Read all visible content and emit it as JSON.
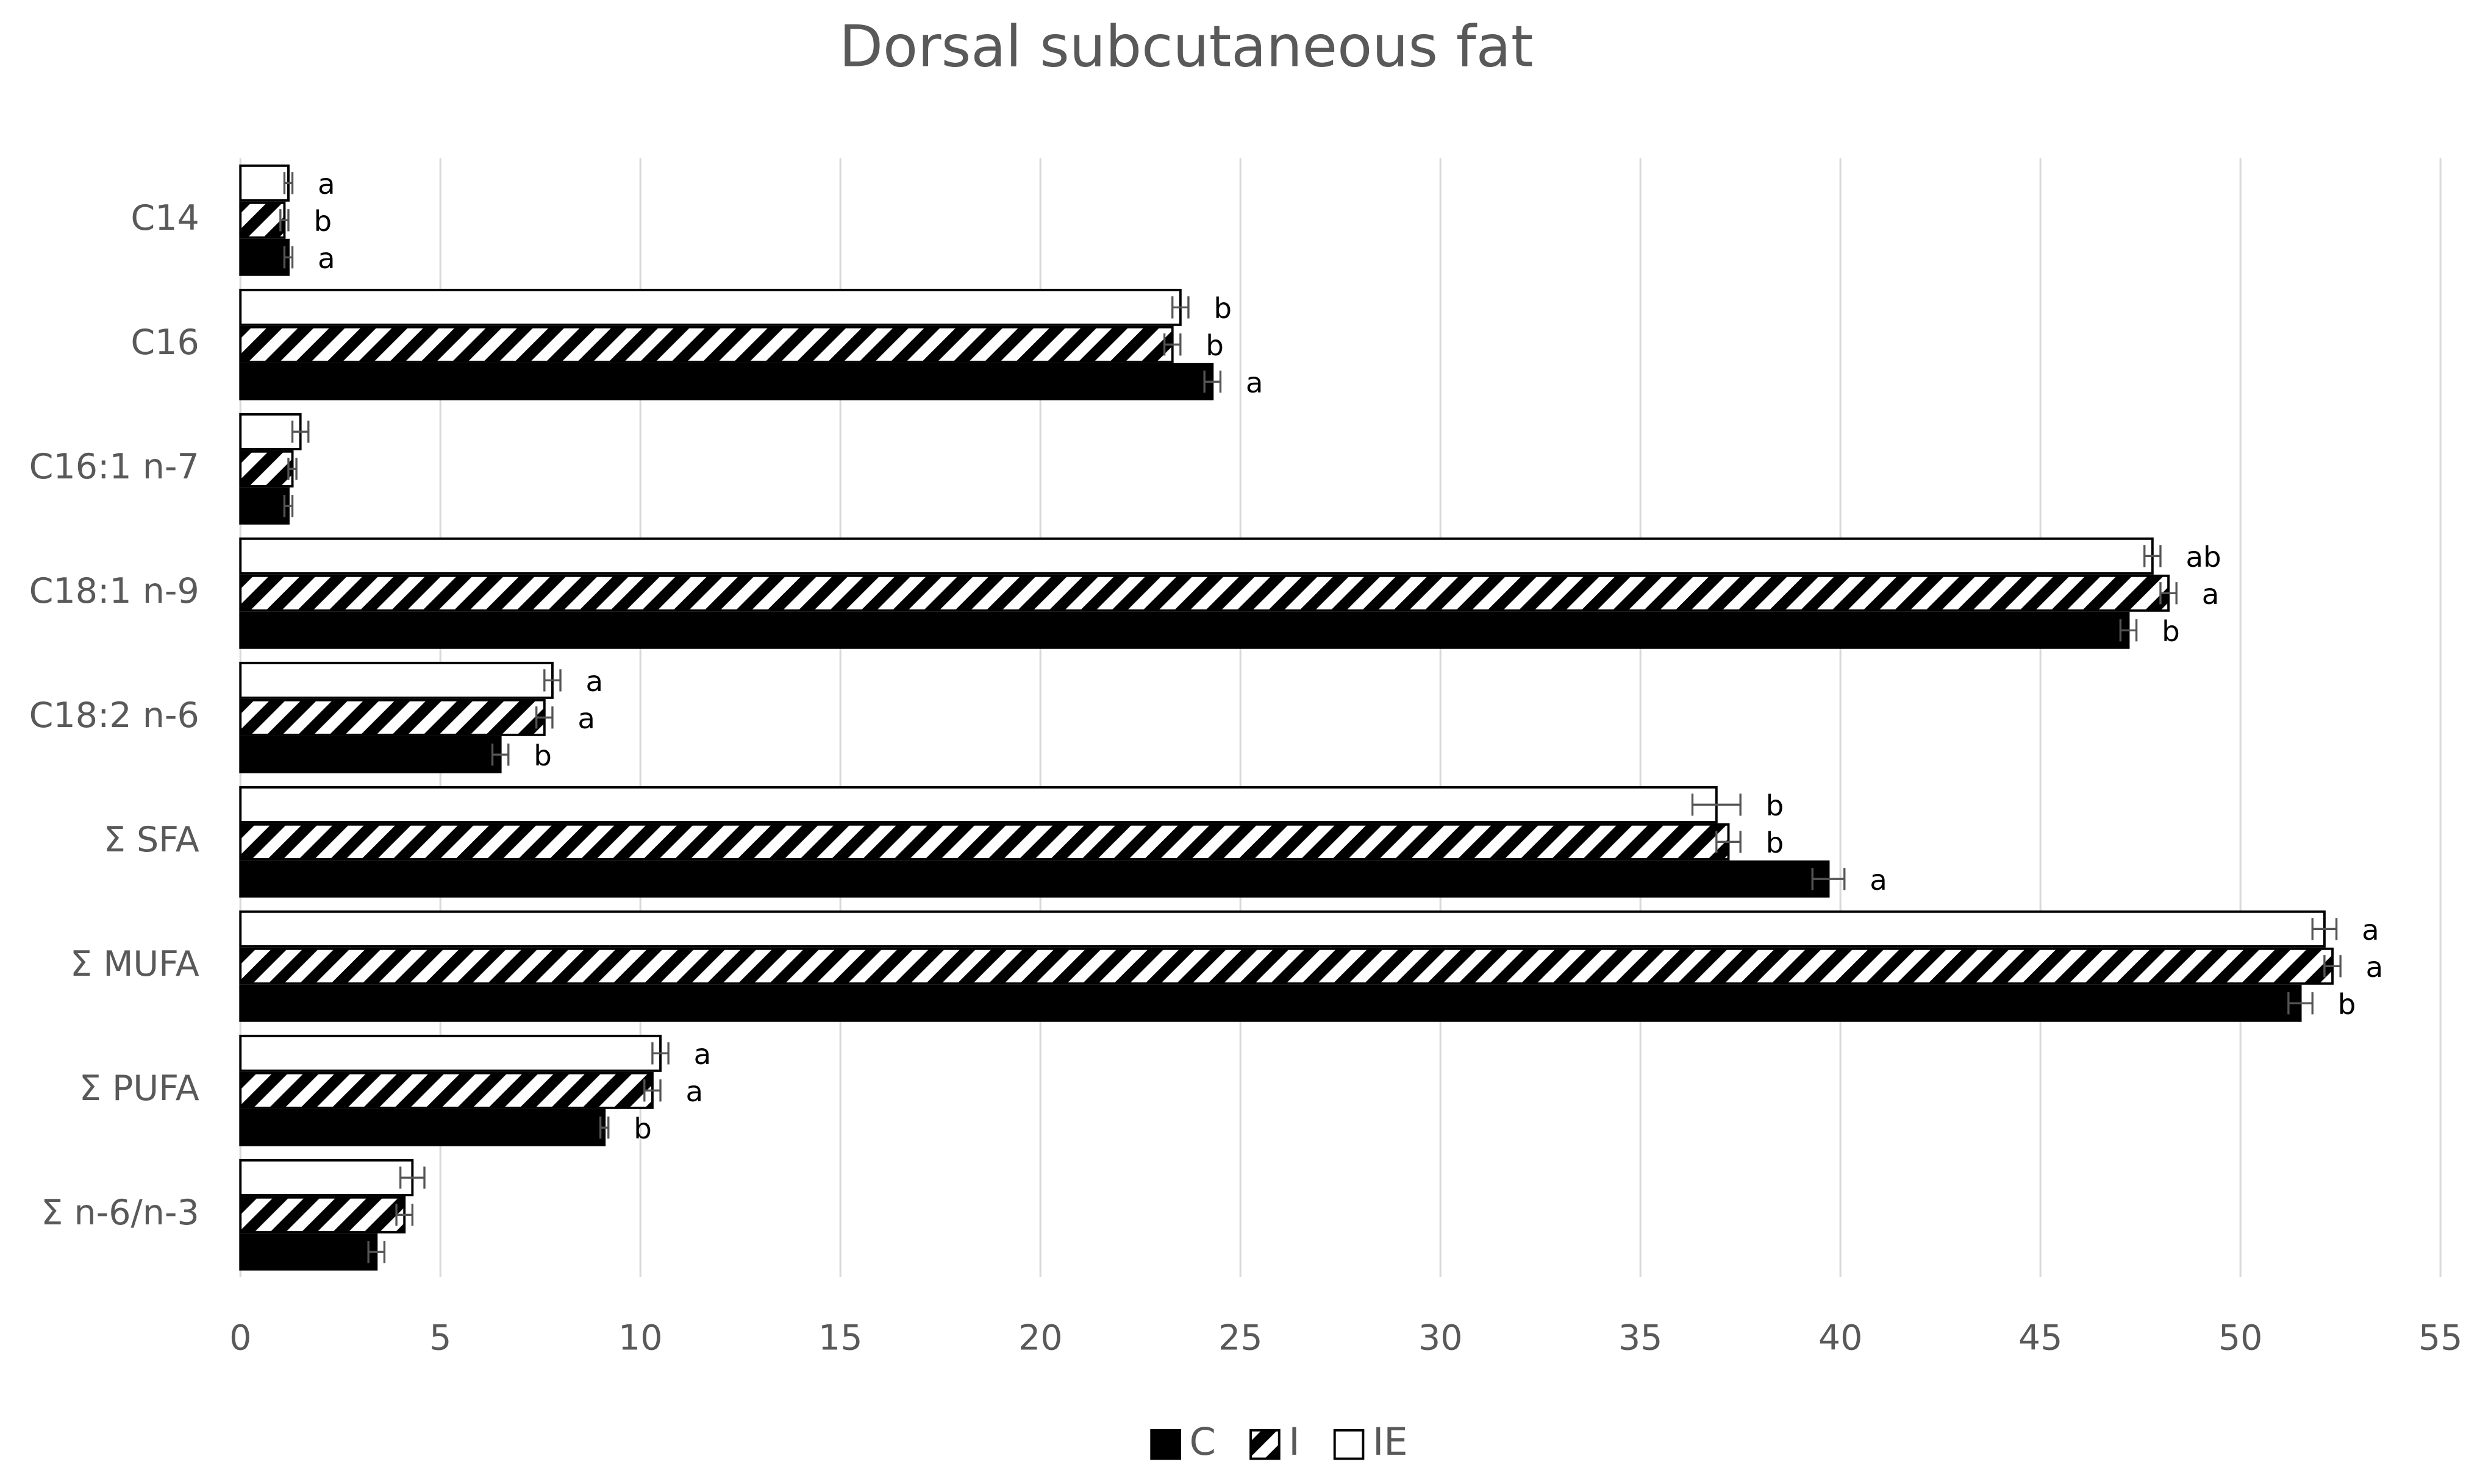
{
  "chart_data": {
    "type": "bar",
    "orientation": "horizontal",
    "title": "Dorsal subcutaneous fat",
    "categories": [
      "C14",
      "C16",
      "C16:1 n-7",
      "C18:1 n-9",
      "C18:2 n-6",
      "Σ SFA",
      "Σ MUFA",
      "Σ PUFA",
      "Σ n-6/n-3"
    ],
    "series": [
      {
        "name": "C",
        "color": "#000000",
        "pattern": "solid",
        "values": [
          1.2,
          24.3,
          1.2,
          47.2,
          6.5,
          39.7,
          51.5,
          9.1,
          3.4
        ],
        "errors": [
          0.1,
          0.2,
          0.1,
          0.2,
          0.2,
          0.4,
          0.3,
          0.1,
          0.2
        ],
        "letters": [
          "a",
          "a",
          null,
          "b",
          "b",
          "a",
          "b",
          "b",
          null
        ]
      },
      {
        "name": "I",
        "color": "#000000",
        "pattern": "hatch",
        "values": [
          1.1,
          23.3,
          1.3,
          48.2,
          7.6,
          37.2,
          52.3,
          10.3,
          4.1
        ],
        "errors": [
          0.1,
          0.2,
          0.1,
          0.2,
          0.2,
          0.3,
          0.2,
          0.2,
          0.2
        ],
        "letters": [
          "b",
          "b",
          null,
          "a",
          "a",
          "b",
          "a",
          "a",
          null
        ]
      },
      {
        "name": "IE",
        "color": "#ffffff",
        "pattern": "solid",
        "values": [
          1.2,
          23.5,
          1.5,
          47.8,
          7.8,
          36.9,
          52.1,
          10.5,
          4.3
        ],
        "errors": [
          0.1,
          0.2,
          0.2,
          0.2,
          0.2,
          0.6,
          0.3,
          0.2,
          0.3
        ],
        "letters": [
          "a",
          "b",
          null,
          "ab",
          "a",
          "b",
          "a",
          "a",
          null
        ]
      }
    ],
    "xlim": [
      0,
      55
    ],
    "xticks": [
      0,
      5,
      10,
      15,
      20,
      25,
      30,
      35,
      40,
      45,
      50,
      55
    ],
    "grid": true,
    "legend": "bottom"
  }
}
